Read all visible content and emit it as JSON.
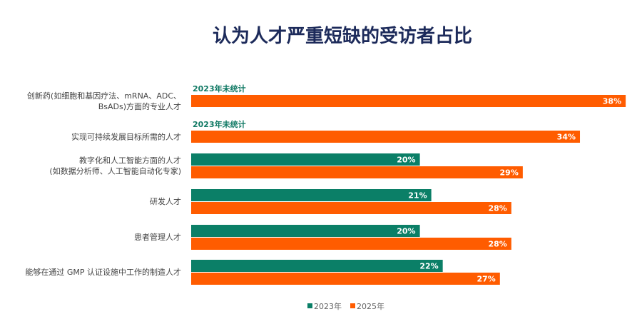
{
  "chart_data": {
    "type": "bar",
    "orientation": "horizontal",
    "title": "认为人才严重短缺的受访者占比",
    "categories": [
      [
        "创新药(如细胞和基因疗法、mRNA、ADC、",
        "BsADs)方面的专业人才"
      ],
      [
        "实现可持续发展目标所需的人才"
      ],
      [
        "教字化和人工智能方面的人才",
        "(如数据分析师、人工智能自动化专家)"
      ],
      [
        "研发人才"
      ],
      [
        "患者管理人才"
      ],
      [
        "能够在通过 GMP 认证设施中工作的制造人才"
      ]
    ],
    "series": [
      {
        "name": "2023年",
        "color": "#0b7f67",
        "values": [
          null,
          null,
          20,
          21,
          20,
          22
        ]
      },
      {
        "name": "2025年",
        "color": "#ff5c00",
        "values": [
          38,
          34,
          29,
          28,
          28,
          27
        ]
      }
    ],
    "missing_label": "2023年未统计",
    "value_suffix": "%",
    "legend": "bottom",
    "grid": false
  }
}
